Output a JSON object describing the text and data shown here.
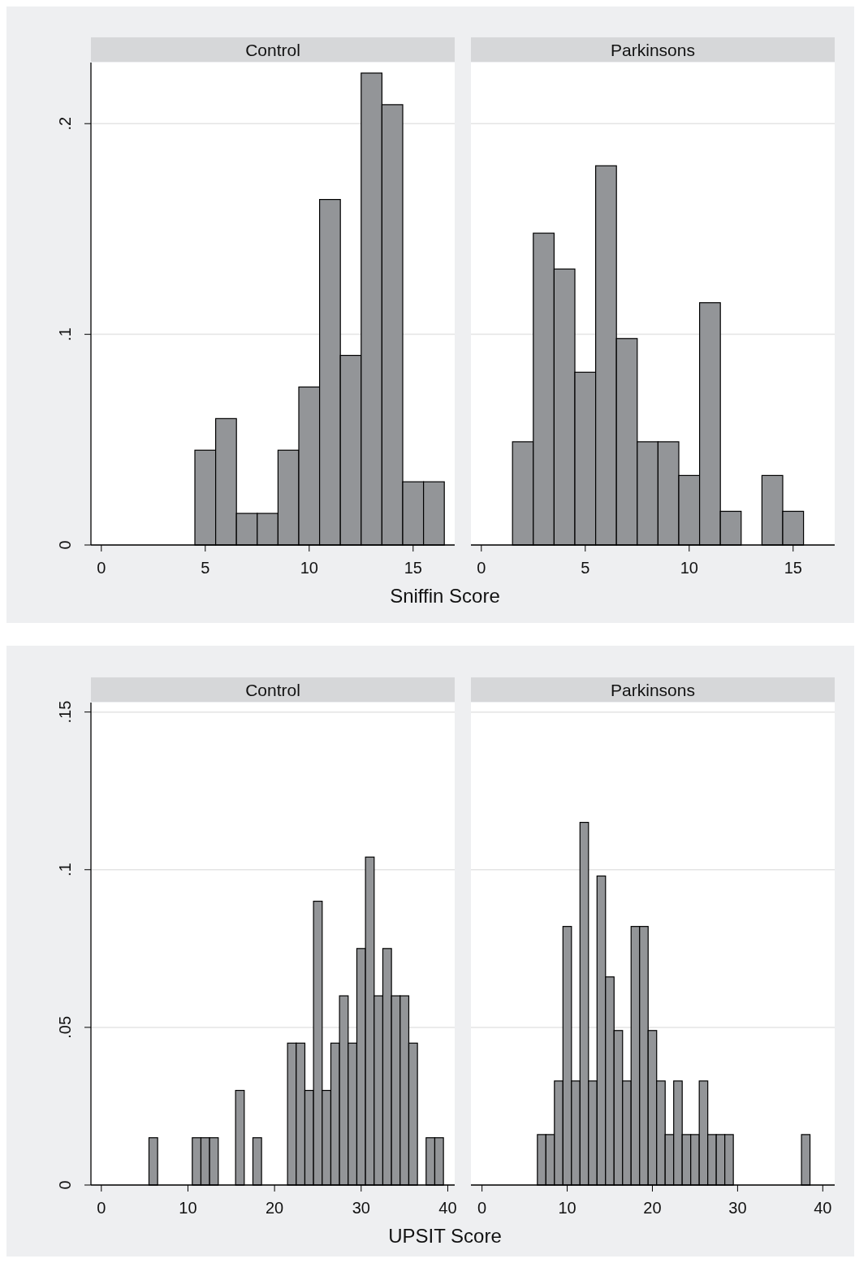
{
  "chart_data": [
    {
      "type": "histogram",
      "title": "Control",
      "xlabel": "Sniffin Score",
      "bins": [
        4.5,
        5.5,
        6.5,
        7.5,
        8.5,
        9.5,
        10.5,
        11.5,
        12.5,
        13.5,
        14.5,
        15.5,
        16.5
      ],
      "values": [
        0.045,
        0.06,
        0.015,
        0.015,
        0.045,
        0.075,
        0.164,
        0.09,
        0.224,
        0.209,
        0.03,
        0.03
      ],
      "color": "#939598",
      "xlim": [
        -0.5,
        17
      ],
      "xticks": [
        0,
        5,
        10,
        15
      ],
      "ylim": [
        0,
        0.229
      ],
      "yticks": [
        0,
        {
          "value": 0.1,
          "label": ".1"
        },
        {
          "value": 0.2,
          "label": ".2"
        }
      ],
      "grid": "y"
    },
    {
      "type": "histogram",
      "title": "Parkinsons",
      "bins": [
        1.5,
        2.5,
        3.5,
        4.5,
        5.5,
        6.5,
        7.5,
        8.5,
        9.5,
        10.5,
        11.5,
        12.5,
        13.5,
        14.5,
        15.5
      ],
      "values": [
        0.049,
        0.148,
        0.131,
        0.082,
        0.18,
        0.098,
        0.049,
        0.049,
        0.033,
        0.115,
        0.016,
        0,
        0.033,
        0.016
      ],
      "color": "#939598",
      "xlim": [
        -0.5,
        17
      ],
      "xticks": [
        0,
        5,
        10,
        15
      ],
      "ylim": [
        0,
        0.229
      ],
      "yticks": [
        0,
        0.1,
        0.2
      ],
      "grid": "y",
      "tick_labels": "x"
    },
    {
      "type": "histogram",
      "title": "Control",
      "xlabel": "UPSIT Score",
      "bins": [
        5.5,
        6.5,
        7.5,
        8.5,
        9.5,
        10.5,
        11.5,
        12.5,
        13.5,
        14.5,
        15.5,
        16.5,
        17.5,
        18.5,
        19.5,
        20.5,
        21.5,
        22.5,
        23.5,
        24.5,
        25.5,
        26.5,
        27.5,
        28.5,
        29.5,
        30.5,
        31.5,
        32.5,
        33.5,
        34.5,
        35.5,
        36.5,
        37.5,
        38.5,
        39.5
      ],
      "values": [
        0.015,
        0,
        0,
        0,
        0,
        0.015,
        0.015,
        0.015,
        0,
        0,
        0.03,
        0,
        0.015,
        0,
        0,
        0,
        0.045,
        0.045,
        0.03,
        0.09,
        0.03,
        0.045,
        0.06,
        0.045,
        0.075,
        0.104,
        0.06,
        0.075,
        0.06,
        0.06,
        0.045,
        0,
        0.015,
        0.015
      ],
      "color": "#939598",
      "xlim": [
        -1.2,
        40.8
      ],
      "xticks": [
        0,
        10,
        20,
        30,
        40
      ],
      "ylim": [
        0,
        0.153
      ],
      "yticks": [
        0,
        {
          "value": 0.05,
          "label": ".05"
        },
        {
          "value": 0.1,
          "label": ".1"
        },
        {
          "value": 0.15,
          "label": ".15"
        }
      ],
      "grid": "y"
    },
    {
      "type": "histogram",
      "title": "Parkinsons",
      "bins": [
        6.5,
        7.5,
        8.5,
        9.5,
        10.5,
        11.5,
        12.5,
        13.5,
        14.5,
        15.5,
        16.5,
        17.5,
        18.5,
        19.5,
        20.5,
        21.5,
        22.5,
        23.5,
        24.5,
        25.5,
        26.5,
        27.5,
        28.5,
        29.5,
        30.5,
        31.5,
        32.5,
        33.5,
        34.5,
        35.5,
        36.5,
        37.5,
        38.5
      ],
      "values": [
        0.016,
        0.016,
        0.033,
        0.082,
        0.033,
        0.115,
        0.033,
        0.098,
        0.066,
        0.049,
        0.033,
        0.082,
        0.082,
        0.049,
        0.033,
        0.016,
        0.033,
        0.016,
        0.016,
        0.033,
        0.016,
        0.016,
        0.016,
        0,
        0,
        0,
        0,
        0,
        0,
        0,
        0,
        0.016
      ],
      "color": "#939598",
      "xlim": [
        -1.3,
        41.4
      ],
      "xticks": [
        0,
        10,
        20,
        30,
        40
      ],
      "ylim": [
        0,
        0.153
      ],
      "yticks": [
        0,
        0.05,
        0.1,
        0.15
      ],
      "grid": "y",
      "tick_labels": "x"
    }
  ]
}
